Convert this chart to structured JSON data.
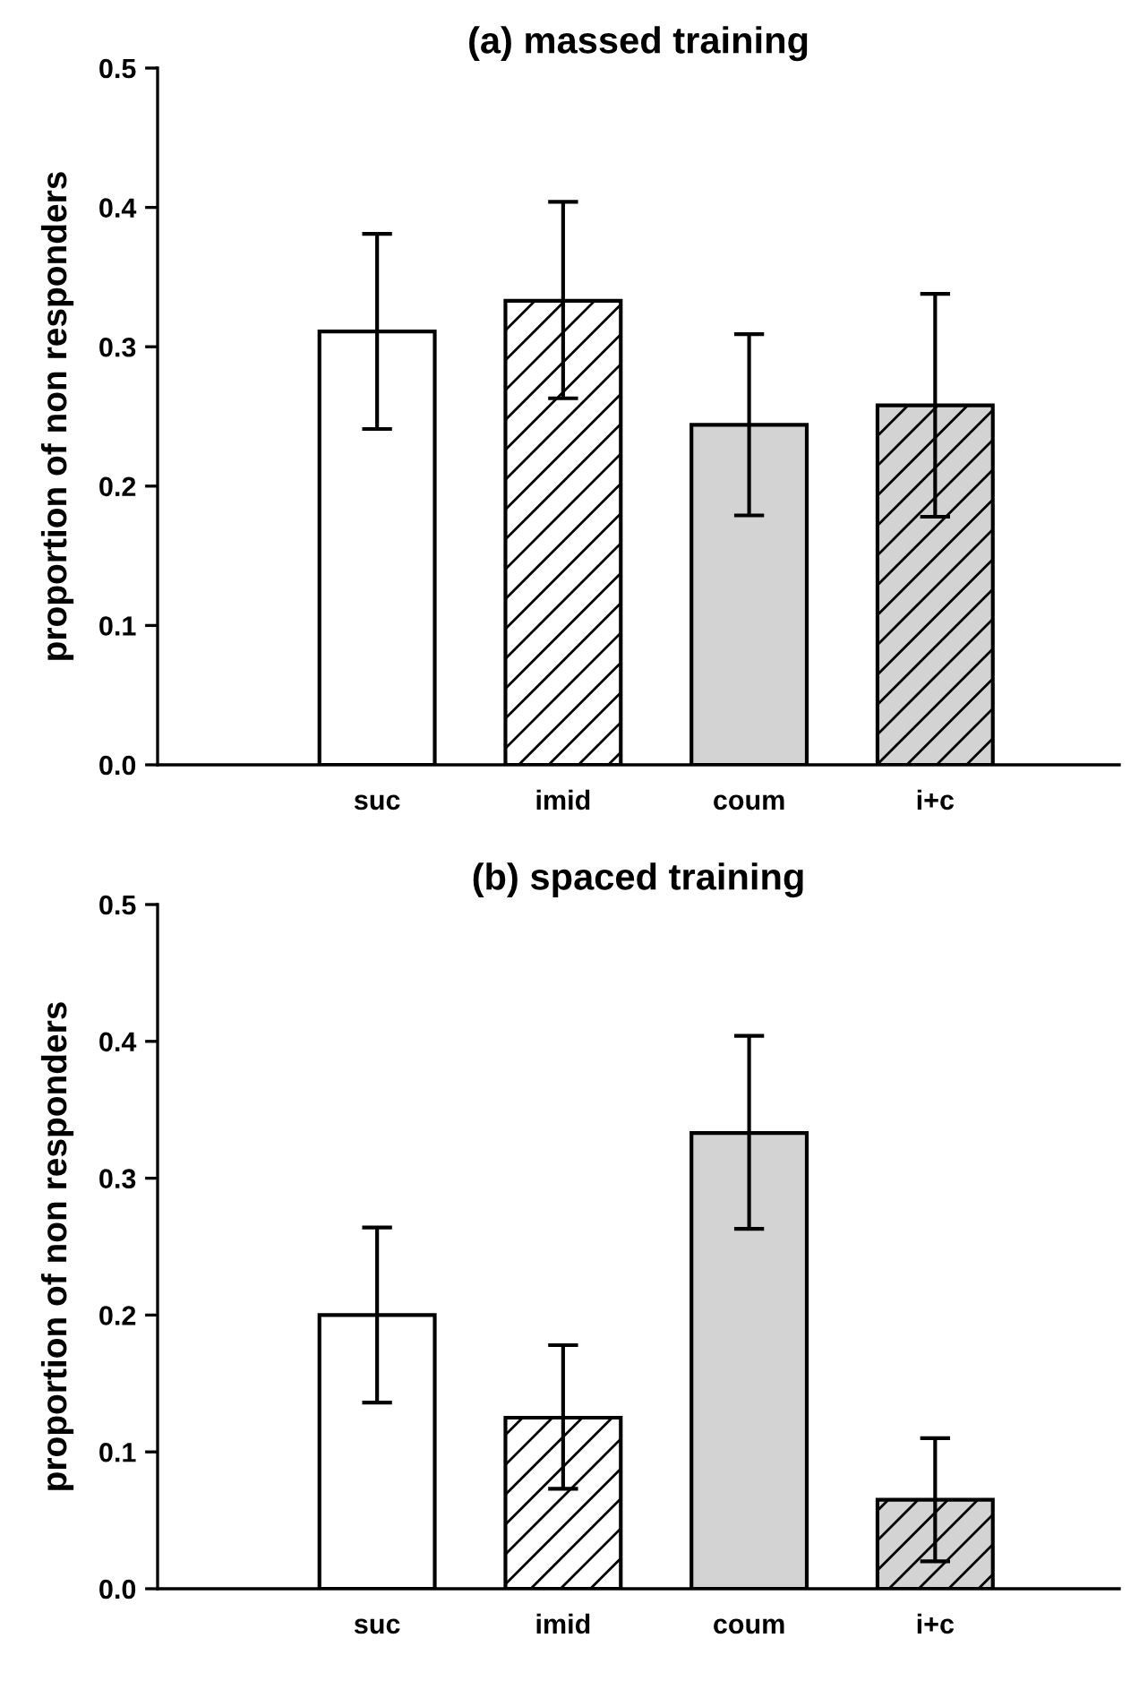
{
  "chart_data": [
    {
      "type": "bar",
      "title": "(a) massed training",
      "ylabel": "proportion of non responders",
      "categories": [
        "suc",
        "imid",
        "coum",
        "i+c"
      ],
      "values": [
        0.311,
        0.333,
        0.244,
        0.258
      ],
      "errors": [
        [
          0.241,
          0.381
        ],
        [
          0.263,
          0.404
        ],
        [
          0.179,
          0.309
        ],
        [
          0.178,
          0.338
        ]
      ],
      "colors": [
        "#ffffff",
        "#ffffff",
        "#d3d3d3",
        "#d3d3d3"
      ],
      "ylim": [
        0,
        0.5
      ],
      "yticks": [
        {
          "value": 0,
          "label": "0.0"
        },
        0.1,
        0.2,
        0.3,
        0.4,
        0.5
      ],
      "grid": false,
      "legend": false
    },
    {
      "type": "bar",
      "title": "(b) spaced training",
      "ylabel": "proportion of non responders",
      "categories": [
        "suc",
        "imid",
        "coum",
        "i+c"
      ],
      "values": [
        0.2,
        0.125,
        0.333,
        0.065
      ],
      "errors": [
        [
          0.136,
          0.264
        ],
        [
          0.073,
          0.178
        ],
        [
          0.263,
          0.404
        ],
        [
          0.02,
          0.11
        ]
      ],
      "colors": [
        "#ffffff",
        "#ffffff",
        "#d3d3d3",
        "#d3d3d3"
      ],
      "ylim": [
        0,
        0.5
      ],
      "yticks": [
        {
          "value": 0,
          "label": "0.0"
        },
        0.1,
        0.2,
        0.3,
        0.4,
        0.5
      ],
      "grid": false,
      "legend": false
    }
  ]
}
